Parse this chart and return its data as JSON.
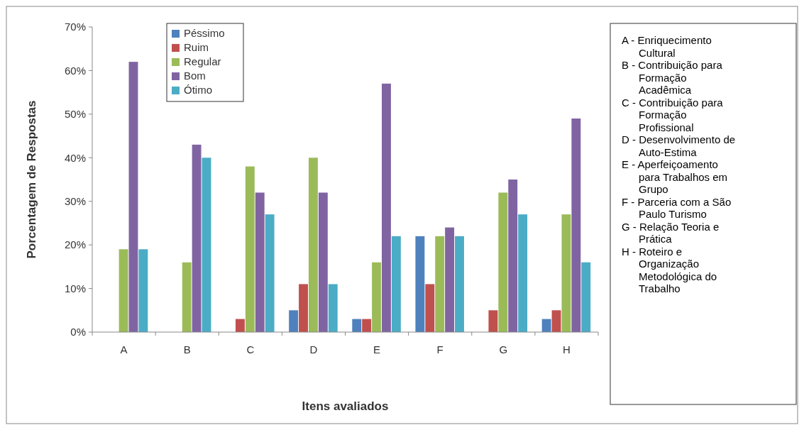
{
  "chart_data": {
    "type": "bar",
    "xlabel": "Itens avaliados",
    "ylabel": "Porcentagem de Respostas",
    "categories": [
      "A",
      "B",
      "C",
      "D",
      "E",
      "F",
      "G",
      "H"
    ],
    "series": [
      {
        "name": "Péssimo",
        "color": "#4f81bd",
        "values": [
          0,
          0,
          0,
          5,
          3,
          22,
          0,
          3
        ]
      },
      {
        "name": "Ruim",
        "color": "#c0504d",
        "values": [
          0,
          0,
          3,
          11,
          3,
          11,
          5,
          5
        ]
      },
      {
        "name": "Regular",
        "color": "#9bbb59",
        "values": [
          19,
          16,
          38,
          40,
          16,
          22,
          32,
          27
        ]
      },
      {
        "name": "Bom",
        "color": "#8064a2",
        "values": [
          62,
          43,
          32,
          32,
          57,
          24,
          35,
          49
        ]
      },
      {
        "name": "Ótimo",
        "color": "#4bacc6",
        "values": [
          19,
          40,
          27,
          11,
          22,
          22,
          27,
          16
        ]
      }
    ],
    "ylim": [
      0,
      70
    ],
    "yticks": [
      {
        "value": 0,
        "label": "0%"
      },
      {
        "value": 10,
        "label": "10%"
      },
      {
        "value": 20,
        "label": "20%"
      },
      {
        "value": 30,
        "label": "30%"
      },
      {
        "value": 40,
        "label": "40%"
      },
      {
        "value": 50,
        "label": "50%"
      },
      {
        "value": 60,
        "label": "60%"
      },
      {
        "value": 70,
        "label": "70%"
      }
    ],
    "legend": "top left",
    "grid": false,
    "annotations": [
      "A - Enriquecimento\nCultural",
      "B - Contribuição para\nFormação\nAcadêmica",
      "C - Contribuição para\nFormação\nProfissional",
      "D - Desenvolvimento de\nAuto-Estima",
      "E - Aperfeiçoamento\npara Trabalhos em\nGrupo",
      "F - Parceria com a São\nPaulo Turismo",
      "G - Relação Teoria e\nPrática",
      "H - Roteiro e\nOrganização\nMetodológica do\nTrabalho"
    ]
  }
}
